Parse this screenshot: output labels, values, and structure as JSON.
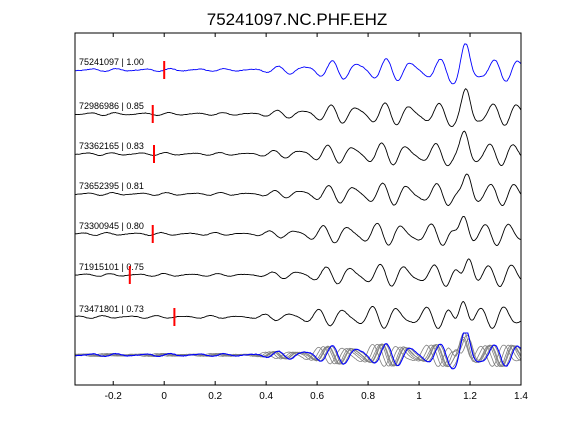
{
  "chart_data": {
    "type": "line",
    "title": "75241097.NC.PHF.EHZ",
    "xlabel": "",
    "ylabel": "",
    "xlim": [
      -0.35,
      1.4
    ],
    "xticks": [
      -0.2,
      0,
      0.2,
      0.4,
      0.6,
      0.8,
      1,
      1.2,
      1.4
    ],
    "xtick_labels": [
      "-0.2",
      "0",
      "0.2",
      "0.4",
      "0.6",
      "0.8",
      "1",
      "1.2",
      "1.4"
    ],
    "grid": false,
    "colors": {
      "reference": "#0000ff",
      "trace": "#000000",
      "pick": "#ff0000",
      "stack": "#808080"
    },
    "series": [
      {
        "label": "75241097 | 1.00",
        "pick": 0.0,
        "reference": true
      },
      {
        "label": "72986986 | 0.85",
        "pick": -0.045
      },
      {
        "label": "73362165 | 0.83",
        "pick": -0.04
      },
      {
        "label": "73652395 | 0.81",
        "pick": null
      },
      {
        "label": "73300945 | 0.80",
        "pick": -0.045
      },
      {
        "label": "71915101 | 0.75",
        "pick": -0.135
      },
      {
        "label": "73471801 | 0.73",
        "pick": 0.04
      }
    ],
    "stack": {
      "trace_count": 7
    }
  }
}
